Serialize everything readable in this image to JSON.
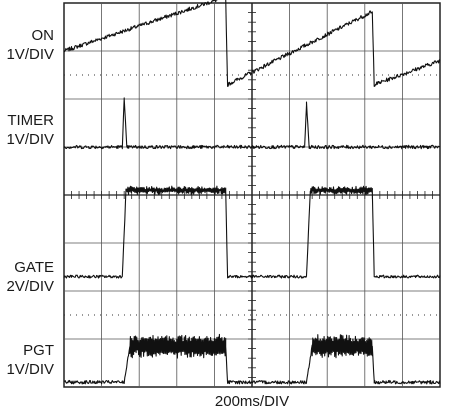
{
  "channels": [
    {
      "name": "ON",
      "scale": "1V/DIV"
    },
    {
      "name": "TIMER",
      "scale": "1V/DIV"
    },
    {
      "name": "GATE",
      "scale": "2V/DIV"
    },
    {
      "name": "PGT",
      "scale": "1V/DIV"
    }
  ],
  "timebase": "200ms/DIV",
  "chart_data": {
    "type": "line",
    "title": "",
    "xlabel": "200ms/DIV",
    "grid": true,
    "x_divisions": 10,
    "y_divisions": 8,
    "x_unit": "div",
    "y_unit": "div",
    "xlim": [
      0,
      10
    ],
    "ylim": [
      0,
      8
    ],
    "series": [
      {
        "name": "ON",
        "scale": "1V/DIV",
        "points": [
          [
            0,
            7.0
          ],
          [
            4.2,
            8.1
          ],
          [
            4.3,
            8.1
          ],
          [
            4.35,
            6.3
          ],
          [
            8.15,
            7.8
          ],
          [
            8.2,
            7.8
          ],
          [
            8.25,
            6.3
          ],
          [
            10,
            6.8
          ]
        ]
      },
      {
        "name": "TIMER",
        "scale": "1V/DIV",
        "points": [
          [
            0,
            5.0
          ],
          [
            1.55,
            5.0
          ],
          [
            1.6,
            6.0
          ],
          [
            1.67,
            5.0
          ],
          [
            6.4,
            5.0
          ],
          [
            6.45,
            5.9
          ],
          [
            6.52,
            5.0
          ],
          [
            10,
            5.0
          ]
        ]
      },
      {
        "name": "GATE",
        "scale": "2V/DIV",
        "points": [
          [
            0,
            2.3
          ],
          [
            1.55,
            2.3
          ],
          [
            1.65,
            4.1
          ],
          [
            4.3,
            4.1
          ],
          [
            4.35,
            2.3
          ],
          [
            6.45,
            2.3
          ],
          [
            6.55,
            4.1
          ],
          [
            8.2,
            4.1
          ],
          [
            8.25,
            2.3
          ],
          [
            10,
            2.3
          ]
        ]
      },
      {
        "name": "PGT",
        "scale": "1V/DIV",
        "points": [
          [
            0,
            0.1
          ],
          [
            1.6,
            0.1
          ],
          [
            1.75,
            0.85
          ],
          [
            4.3,
            0.85
          ],
          [
            4.35,
            0.1
          ],
          [
            6.45,
            0.1
          ],
          [
            6.6,
            0.85
          ],
          [
            8.2,
            0.85
          ],
          [
            8.25,
            0.1
          ],
          [
            10,
            0.1
          ]
        ]
      }
    ]
  }
}
